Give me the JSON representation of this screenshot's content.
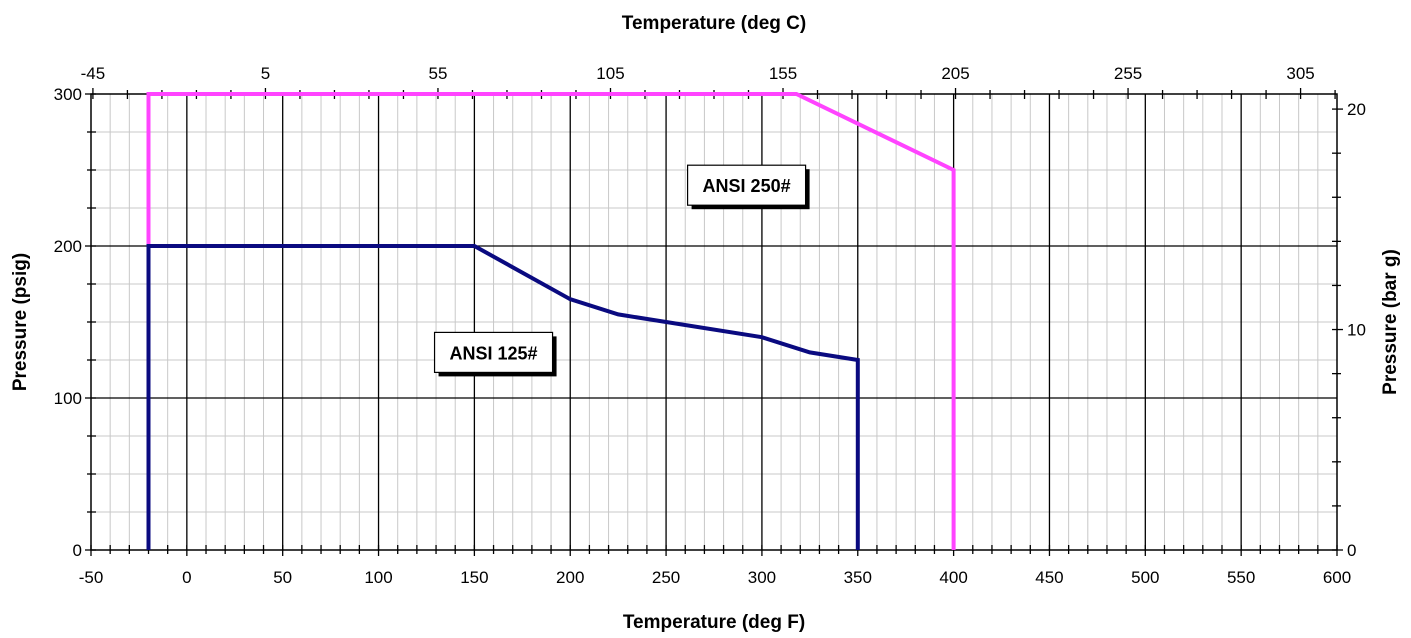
{
  "chart_data": {
    "type": "line",
    "xlabel": "Temperature (deg F)",
    "x2label": "Temperature (deg C)",
    "ylabel": "Pressure (psig)",
    "y2label": "Pressure (bar g)",
    "xlim": [
      -50,
      600
    ],
    "ylim": [
      0,
      300
    ],
    "x2lim": [
      -45.56,
      315.56
    ],
    "y2lim": [
      0,
      20.68
    ],
    "x_ticks": [
      "-50",
      "0",
      "50",
      "100",
      "150",
      "200",
      "250",
      "300",
      "350",
      "400",
      "450",
      "500",
      "550",
      "600"
    ],
    "y_ticks": [
      "0",
      "100",
      "200",
      "300"
    ],
    "x2_ticks": [
      "-45",
      "5",
      "55",
      "105",
      "155",
      "205",
      "255",
      "305"
    ],
    "y2_ticks": [
      "0",
      "10",
      "20"
    ],
    "grid": true,
    "series": [
      {
        "name": "ANSI 250#",
        "color": "#ff44ff",
        "points": [
          [
            -20,
            0
          ],
          [
            -20,
            300
          ],
          [
            318,
            300
          ],
          [
            400,
            250
          ],
          [
            400,
            0
          ]
        ]
      },
      {
        "name": "ANSI 125#",
        "color": "#0a0a80",
        "points": [
          [
            -20,
            0
          ],
          [
            -20,
            200
          ],
          [
            150,
            200
          ],
          [
            200,
            165
          ],
          [
            225,
            155
          ],
          [
            300,
            140
          ],
          [
            325,
            130
          ],
          [
            350,
            125
          ],
          [
            350,
            0
          ]
        ]
      }
    ],
    "annotations": [
      {
        "text": "ANSI 250#",
        "x": 292,
        "y": 240
      },
      {
        "text": "ANSI 125#",
        "x": 160,
        "y": 130
      }
    ]
  }
}
